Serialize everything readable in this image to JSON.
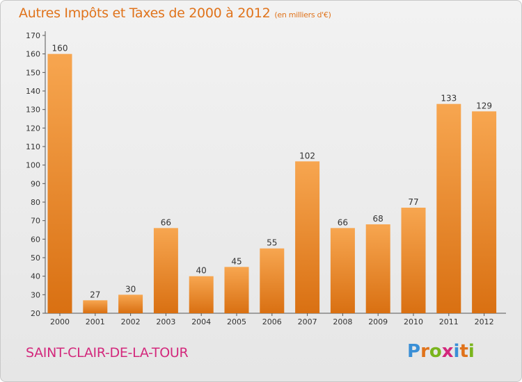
{
  "title": "Autres Impôts et Taxes de 2000 à 2012",
  "unit": "(en milliers d'€)",
  "commune": "SAINT-CLAIR-DE-LA-TOUR",
  "logo": {
    "text": "Proxiti",
    "colors": [
      "#3a8fd6",
      "#e0731b",
      "#7ab51d",
      "#d3287c",
      "#3a8fd6",
      "#e0731b",
      "#7ab51d"
    ]
  },
  "colors": {
    "bar_top": "#f7a650",
    "bar_bottom": "#d97012",
    "title": "#e0731b",
    "commune": "#d3287c"
  },
  "chart_data": {
    "type": "bar",
    "title": "Autres Impôts et Taxes de 2000 à 2012",
    "categories": [
      "2000",
      "2001",
      "2002",
      "2003",
      "2004",
      "2005",
      "2006",
      "2007",
      "2008",
      "2009",
      "2010",
      "2011",
      "2012"
    ],
    "values": [
      160,
      27,
      30,
      66,
      40,
      45,
      55,
      102,
      66,
      68,
      77,
      133,
      129
    ],
    "ylim": [
      20,
      170
    ],
    "yticks": [
      20,
      30,
      40,
      50,
      60,
      70,
      80,
      90,
      100,
      110,
      120,
      130,
      140,
      150,
      160,
      170
    ],
    "grid": false,
    "legend": "none"
  }
}
